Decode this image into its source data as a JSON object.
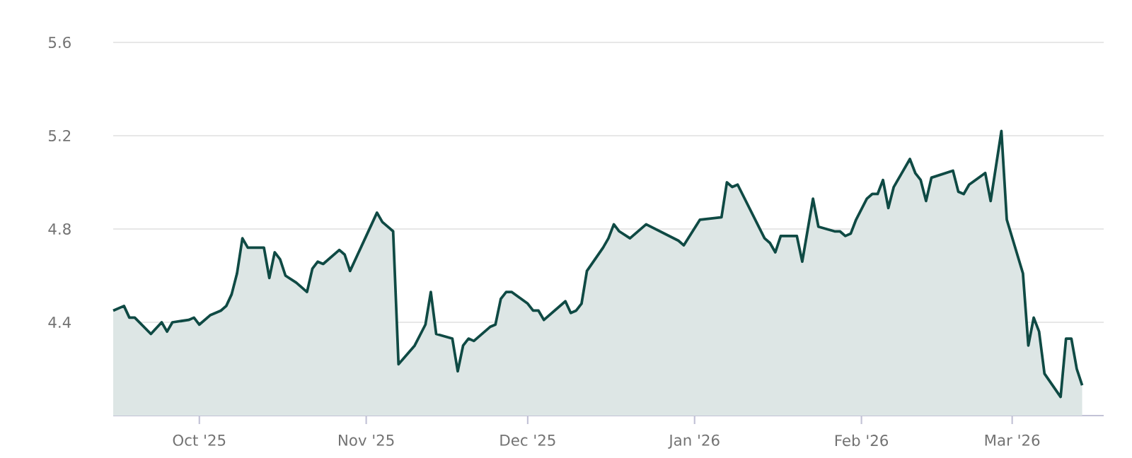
{
  "chart_data": {
    "type": "area",
    "x": [
      "2025-09-15",
      "2025-09-17",
      "2025-09-18",
      "2025-09-19",
      "2025-09-22",
      "2025-09-24",
      "2025-09-25",
      "2025-09-26",
      "2025-09-29",
      "2025-09-30",
      "2025-10-01",
      "2025-10-03",
      "2025-10-05",
      "2025-10-06",
      "2025-10-07",
      "2025-10-08",
      "2025-10-09",
      "2025-10-10",
      "2025-10-13",
      "2025-10-14",
      "2025-10-15",
      "2025-10-16",
      "2025-10-17",
      "2025-10-19",
      "2025-10-21",
      "2025-10-22",
      "2025-10-23",
      "2025-10-24",
      "2025-10-27",
      "2025-10-28",
      "2025-10-29",
      "2025-11-03",
      "2025-11-04",
      "2025-11-05",
      "2025-11-06",
      "2025-11-07",
      "2025-11-10",
      "2025-11-12",
      "2025-11-13",
      "2025-11-14",
      "2025-11-17",
      "2025-11-18",
      "2025-11-19",
      "2025-11-20",
      "2025-11-21",
      "2025-11-24",
      "2025-11-25",
      "2025-11-26",
      "2025-11-27",
      "2025-11-28",
      "2025-12-01",
      "2025-12-02",
      "2025-12-03",
      "2025-12-04",
      "2025-12-08",
      "2025-12-09",
      "2025-12-10",
      "2025-12-11",
      "2025-12-12",
      "2025-12-15",
      "2025-12-16",
      "2025-12-17",
      "2025-12-18",
      "2025-12-20",
      "2025-12-23",
      "2025-12-29",
      "2025-12-30",
      "2026-01-02",
      "2026-01-06",
      "2026-01-07",
      "2026-01-08",
      "2026-01-09",
      "2026-01-14",
      "2026-01-15",
      "2026-01-16",
      "2026-01-17",
      "2026-01-20",
      "2026-01-21",
      "2026-01-23",
      "2026-01-24",
      "2026-01-27",
      "2026-01-28",
      "2026-01-29",
      "2026-01-30",
      "2026-01-31",
      "2026-02-02",
      "2026-02-03",
      "2026-02-04",
      "2026-02-05",
      "2026-02-06",
      "2026-02-07",
      "2026-02-10",
      "2026-02-11",
      "2026-02-12",
      "2026-02-13",
      "2026-02-14",
      "2026-02-18",
      "2026-02-19",
      "2026-02-20",
      "2026-02-21",
      "2026-02-24",
      "2026-02-25",
      "2026-02-27",
      "2026-02-28",
      "2026-03-03",
      "2026-03-04",
      "2026-03-05",
      "2026-03-06",
      "2026-03-07",
      "2026-03-10",
      "2026-03-11",
      "2026-03-12",
      "2026-03-13",
      "2026-03-14"
    ],
    "series": [
      {
        "color": "#0f4a44",
        "values": [
          4.45,
          4.47,
          4.42,
          4.42,
          4.35,
          4.4,
          4.36,
          4.4,
          4.41,
          4.42,
          4.39,
          4.43,
          4.45,
          4.47,
          4.52,
          4.61,
          4.76,
          4.72,
          4.72,
          4.59,
          4.7,
          4.67,
          4.6,
          4.57,
          4.53,
          4.63,
          4.66,
          4.65,
          4.71,
          4.69,
          4.62,
          4.87,
          4.83,
          4.81,
          4.79,
          4.22,
          4.3,
          4.39,
          4.53,
          4.35,
          4.33,
          4.19,
          4.3,
          4.33,
          4.32,
          4.38,
          4.39,
          4.5,
          4.53,
          4.53,
          4.48,
          4.45,
          4.45,
          4.41,
          4.49,
          4.44,
          4.45,
          4.48,
          4.62,
          4.72,
          4.76,
          4.82,
          4.79,
          4.76,
          4.82,
          4.75,
          4.73,
          4.84,
          4.85,
          5.0,
          4.98,
          4.99,
          4.76,
          4.74,
          4.7,
          4.77,
          4.77,
          4.66,
          4.93,
          4.81,
          4.79,
          4.79,
          4.77,
          4.78,
          4.84,
          4.93,
          4.95,
          4.95,
          5.01,
          4.89,
          4.98,
          5.1,
          5.04,
          5.01,
          4.92,
          5.02,
          5.05,
          4.96,
          4.95,
          4.99,
          5.04,
          4.92,
          5.22,
          4.84,
          4.61,
          4.3,
          4.42,
          4.36,
          4.18,
          4.08,
          4.33,
          4.33,
          4.2,
          4.13
        ]
      }
    ],
    "xlim": [
      "2025-09-15",
      "2026-03-18"
    ],
    "xticks": [
      {
        "value": "2025-10-01",
        "label": "Oct '25"
      },
      {
        "value": "2025-11-01",
        "label": "Nov '25"
      },
      {
        "value": "2025-12-01",
        "label": "Dec '25"
      },
      {
        "value": "2026-01-01",
        "label": "Jan '26"
      },
      {
        "value": "2026-02-01",
        "label": "Feb '26"
      },
      {
        "value": "2026-03-01",
        "label": "Mar '26"
      }
    ],
    "ylim": [
      4.0,
      5.6
    ],
    "yticks": [
      4.4,
      4.8,
      5.2,
      5.6
    ],
    "grid": "y",
    "line_style": "solid"
  }
}
